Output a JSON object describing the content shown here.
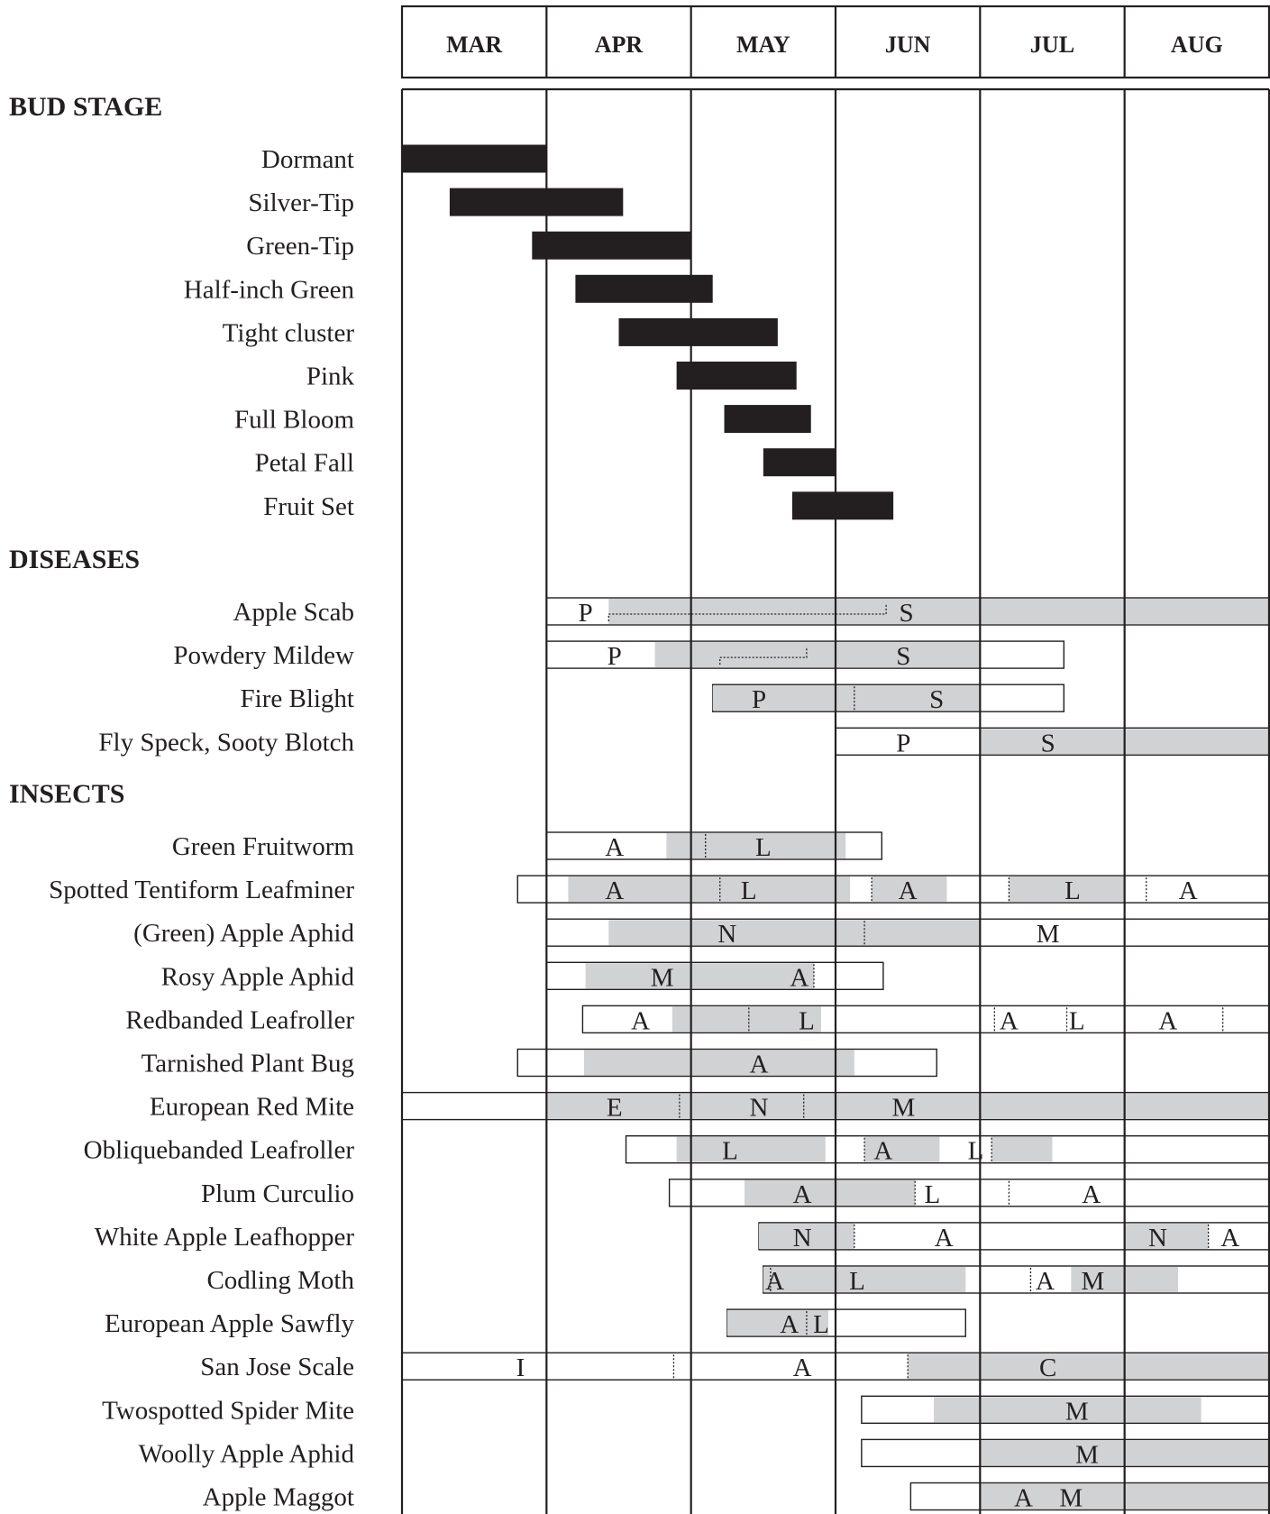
{
  "chart_data": {
    "type": "gantt",
    "title": "",
    "months": [
      "MAR",
      "APR",
      "MAY",
      "JUN",
      "JUL",
      "AUG"
    ],
    "colors": {
      "bud_bar": "#231f20",
      "active": "#d1d2d4",
      "grid": "#231f20",
      "text": "#231f20"
    },
    "sections": [
      {
        "title": "BUD  STAGE",
        "kind": "bud",
        "rows": [
          {
            "label": "Dormant",
            "start": 0.0,
            "end": 1.0
          },
          {
            "label": "Silver-Tip",
            "start": 0.33,
            "end": 1.53
          },
          {
            "label": "Green-Tip",
            "start": 0.9,
            "end": 2.0
          },
          {
            "label": "Half-inch Green",
            "start": 1.2,
            "end": 2.15
          },
          {
            "label": "Tight cluster",
            "start": 1.5,
            "end": 2.6
          },
          {
            "label": "Pink",
            "start": 1.9,
            "end": 2.73
          },
          {
            "label": "Full Bloom",
            "start": 2.23,
            "end": 2.83
          },
          {
            "label": "Petal Fall",
            "start": 2.5,
            "end": 3.0
          },
          {
            "label": "Fruit Set",
            "start": 2.7,
            "end": 3.4
          }
        ]
      },
      {
        "title": "DISEASES",
        "kind": "pest",
        "rows": [
          {
            "label": "Apple Scab",
            "start": 1.0,
            "end": 6.0,
            "active": [
              [
                1.43,
                6.0
              ]
            ],
            "dividers": [],
            "stepped": [
              [
                1.43,
                3.35
              ]
            ],
            "letters": [
              {
                "t": "P",
                "x": 1.27
              },
              {
                "t": "S",
                "x": 3.49
              }
            ]
          },
          {
            "label": "Powdery Mildew",
            "start": 1.0,
            "end": 4.58,
            "active": [
              [
                1.75,
                4.0
              ]
            ],
            "dividers": [],
            "stepped": [
              [
                2.2,
                2.8
              ]
            ],
            "letters": [
              {
                "t": "P",
                "x": 1.47
              },
              {
                "t": "S",
                "x": 3.47
              }
            ]
          },
          {
            "label": "Fire Blight",
            "start": 2.15,
            "end": 4.58,
            "active": [
              [
                2.15,
                4.0
              ]
            ],
            "dividers": [
              3.13
            ],
            "letters": [
              {
                "t": "P",
                "x": 2.47
              },
              {
                "t": "S",
                "x": 3.7
              }
            ]
          },
          {
            "label": "Fly Speck, Sooty Blotch",
            "start": 3.0,
            "end": 6.0,
            "active": [
              [
                4.0,
                6.0
              ]
            ],
            "dividers": [],
            "letters": [
              {
                "t": "P",
                "x": 3.47
              },
              {
                "t": "S",
                "x": 4.47
              }
            ]
          }
        ]
      },
      {
        "title": "INSECTS",
        "kind": "pest",
        "rows": [
          {
            "label": "Green Fruitworm",
            "start": 1.0,
            "end": 3.32,
            "active": [
              [
                1.83,
                3.07
              ]
            ],
            "dividers": [
              2.1
            ],
            "letters": [
              {
                "t": "A",
                "x": 1.47
              },
              {
                "t": "L",
                "x": 2.5
              }
            ]
          },
          {
            "label": "Spotted Tentiform Leafminer",
            "start": 0.8,
            "end": 6.0,
            "active": [
              [
                1.15,
                3.1
              ],
              [
                3.25,
                3.77
              ],
              [
                4.2,
                5.0
              ]
            ],
            "dividers": [
              2.2,
              3.25,
              4.2,
              5.15
            ],
            "letters": [
              {
                "t": "A",
                "x": 1.47
              },
              {
                "t": "L",
                "x": 2.4
              },
              {
                "t": "A",
                "x": 3.5
              },
              {
                "t": "L",
                "x": 4.64
              },
              {
                "t": "A",
                "x": 4.64,
                "alt": true
              }
            ]
          },
          {
            "label": "(Green) Apple Aphid",
            "start": 1.0,
            "end": 6.0,
            "active": [
              [
                1.43,
                4.0
              ]
            ],
            "dividers": [
              3.2
            ],
            "letters": [
              {
                "t": "N",
                "x": 2.25
              },
              {
                "t": "M",
                "x": 4.47
              }
            ]
          },
          {
            "label": "Rosy Apple Aphid",
            "start": 1.0,
            "end": 3.33,
            "active": [
              [
                1.27,
                2.85
              ]
            ],
            "dividers": [
              2.85
            ],
            "letters": [
              {
                "t": "M",
                "x": 1.8
              },
              {
                "t": "A",
                "x": 2.75
              }
            ]
          },
          {
            "label": "Redbanded Leafroller",
            "start": 1.25,
            "end": 6.0,
            "active": [
              [
                1.87,
                2.9
              ]
            ],
            "dividers": [
              2.4,
              4.1,
              4.6,
              5.68
            ],
            "letters": [
              {
                "t": "A",
                "x": 1.65
              },
              {
                "t": "L",
                "x": 2.8
              },
              {
                "t": "A",
                "x": 4.2
              },
              {
                "t": "L",
                "x": 4.67
              },
              {
                "t": "A",
                "x": 5.3
              }
            ]
          },
          {
            "label": "Tarnished Plant Bug",
            "start": 0.8,
            "end": 3.7,
            "active": [
              [
                1.26,
                3.13
              ]
            ],
            "dividers": [],
            "letters": [
              {
                "t": "A",
                "x": 2.47
              }
            ]
          },
          {
            "label": "European Red Mite",
            "start": 0.0,
            "end": 6.0,
            "active": [
              [
                1.0,
                6.0
              ]
            ],
            "dividers": [
              1.92,
              2.78
            ],
            "letters": [
              {
                "t": "E",
                "x": 1.47
              },
              {
                "t": "N",
                "x": 2.47
              },
              {
                "t": "M",
                "x": 3.47
              }
            ]
          },
          {
            "label": "Obliquebanded Leafroller",
            "start": 1.55,
            "end": 6.0,
            "active": [
              [
                1.9,
                2.93
              ],
              [
                3.2,
                3.72
              ],
              [
                4.08,
                4.5
              ]
            ],
            "dividers": [
              3.2,
              4.08
            ],
            "letters": [
              {
                "t": "L",
                "x": 2.27
              },
              {
                "t": "A",
                "x": 3.33
              },
              {
                "t": "L",
                "x": 3.97
              }
            ]
          },
          {
            "label": "Plum Curculio",
            "start": 1.85,
            "end": 6.0,
            "active": [
              [
                2.37,
                3.55
              ]
            ],
            "dividers": [
              3.55,
              4.2
            ],
            "letters": [
              {
                "t": "A",
                "x": 2.77
              },
              {
                "t": "L",
                "x": 3.67
              },
              {
                "t": "A",
                "x": 4.77
              }
            ]
          },
          {
            "label": "White Apple Leafhopper",
            "start": 2.47,
            "end": 6.0,
            "active": [
              [
                2.47,
                3.13
              ],
              [
                5.0,
                5.58
              ]
            ],
            "dividers": [
              3.13,
              5.0,
              5.58
            ],
            "letters": [
              {
                "t": "N",
                "x": 2.77
              },
              {
                "t": "A",
                "x": 3.75
              },
              {
                "t": "N",
                "x": 5.23
              },
              {
                "t": "A",
                "x": 5.73
              }
            ]
          },
          {
            "label": "Codling Moth",
            "start": 2.5,
            "end": 6.0,
            "active": [
              [
                2.5,
                3.9
              ],
              [
                4.63,
                5.37
              ]
            ],
            "dividers": [
              2.55,
              4.35
            ],
            "letters": [
              {
                "t": "A",
                "x": 2.58
              },
              {
                "t": "L",
                "x": 3.15
              },
              {
                "t": "A",
                "x": 4.45
              },
              {
                "t": "M",
                "x": 4.78
              }
            ]
          },
          {
            "label": "European Apple Sawfly",
            "start": 2.25,
            "end": 3.9,
            "active": [
              [
                2.25,
                2.95
              ]
            ],
            "dividers": [
              2.8
            ],
            "letters": [
              {
                "t": "A",
                "x": 2.68
              },
              {
                "t": "L",
                "x": 2.9
              }
            ]
          },
          {
            "label": "San Jose Scale",
            "start": 0.0,
            "end": 6.0,
            "active": [
              [
                3.5,
                6.0
              ]
            ],
            "dividers": [
              1.88,
              3.5
            ],
            "letters": [
              {
                "t": "I",
                "x": 0.82
              },
              {
                "t": "A",
                "x": 2.77
              },
              {
                "t": "C",
                "x": 4.47
              }
            ]
          },
          {
            "label": "Twospotted Spider Mite",
            "start": 3.18,
            "end": 6.0,
            "active": [
              [
                3.68,
                5.53
              ]
            ],
            "dividers": [],
            "letters": [
              {
                "t": "M",
                "x": 4.67
              }
            ]
          },
          {
            "label": "Woolly Apple Aphid",
            "start": 3.18,
            "end": 6.0,
            "active": [
              [
                4.0,
                6.0
              ]
            ],
            "dividers": [],
            "letters": [
              {
                "t": "M",
                "x": 4.74
              }
            ]
          },
          {
            "label": "Apple Maggot",
            "start": 3.52,
            "end": 6.0,
            "active": [
              [
                4.0,
                6.0
              ]
            ],
            "dividers": [],
            "letters": [
              {
                "t": "A",
                "x": 4.3
              },
              {
                "t": "M",
                "x": 4.63
              }
            ]
          }
        ]
      }
    ]
  }
}
